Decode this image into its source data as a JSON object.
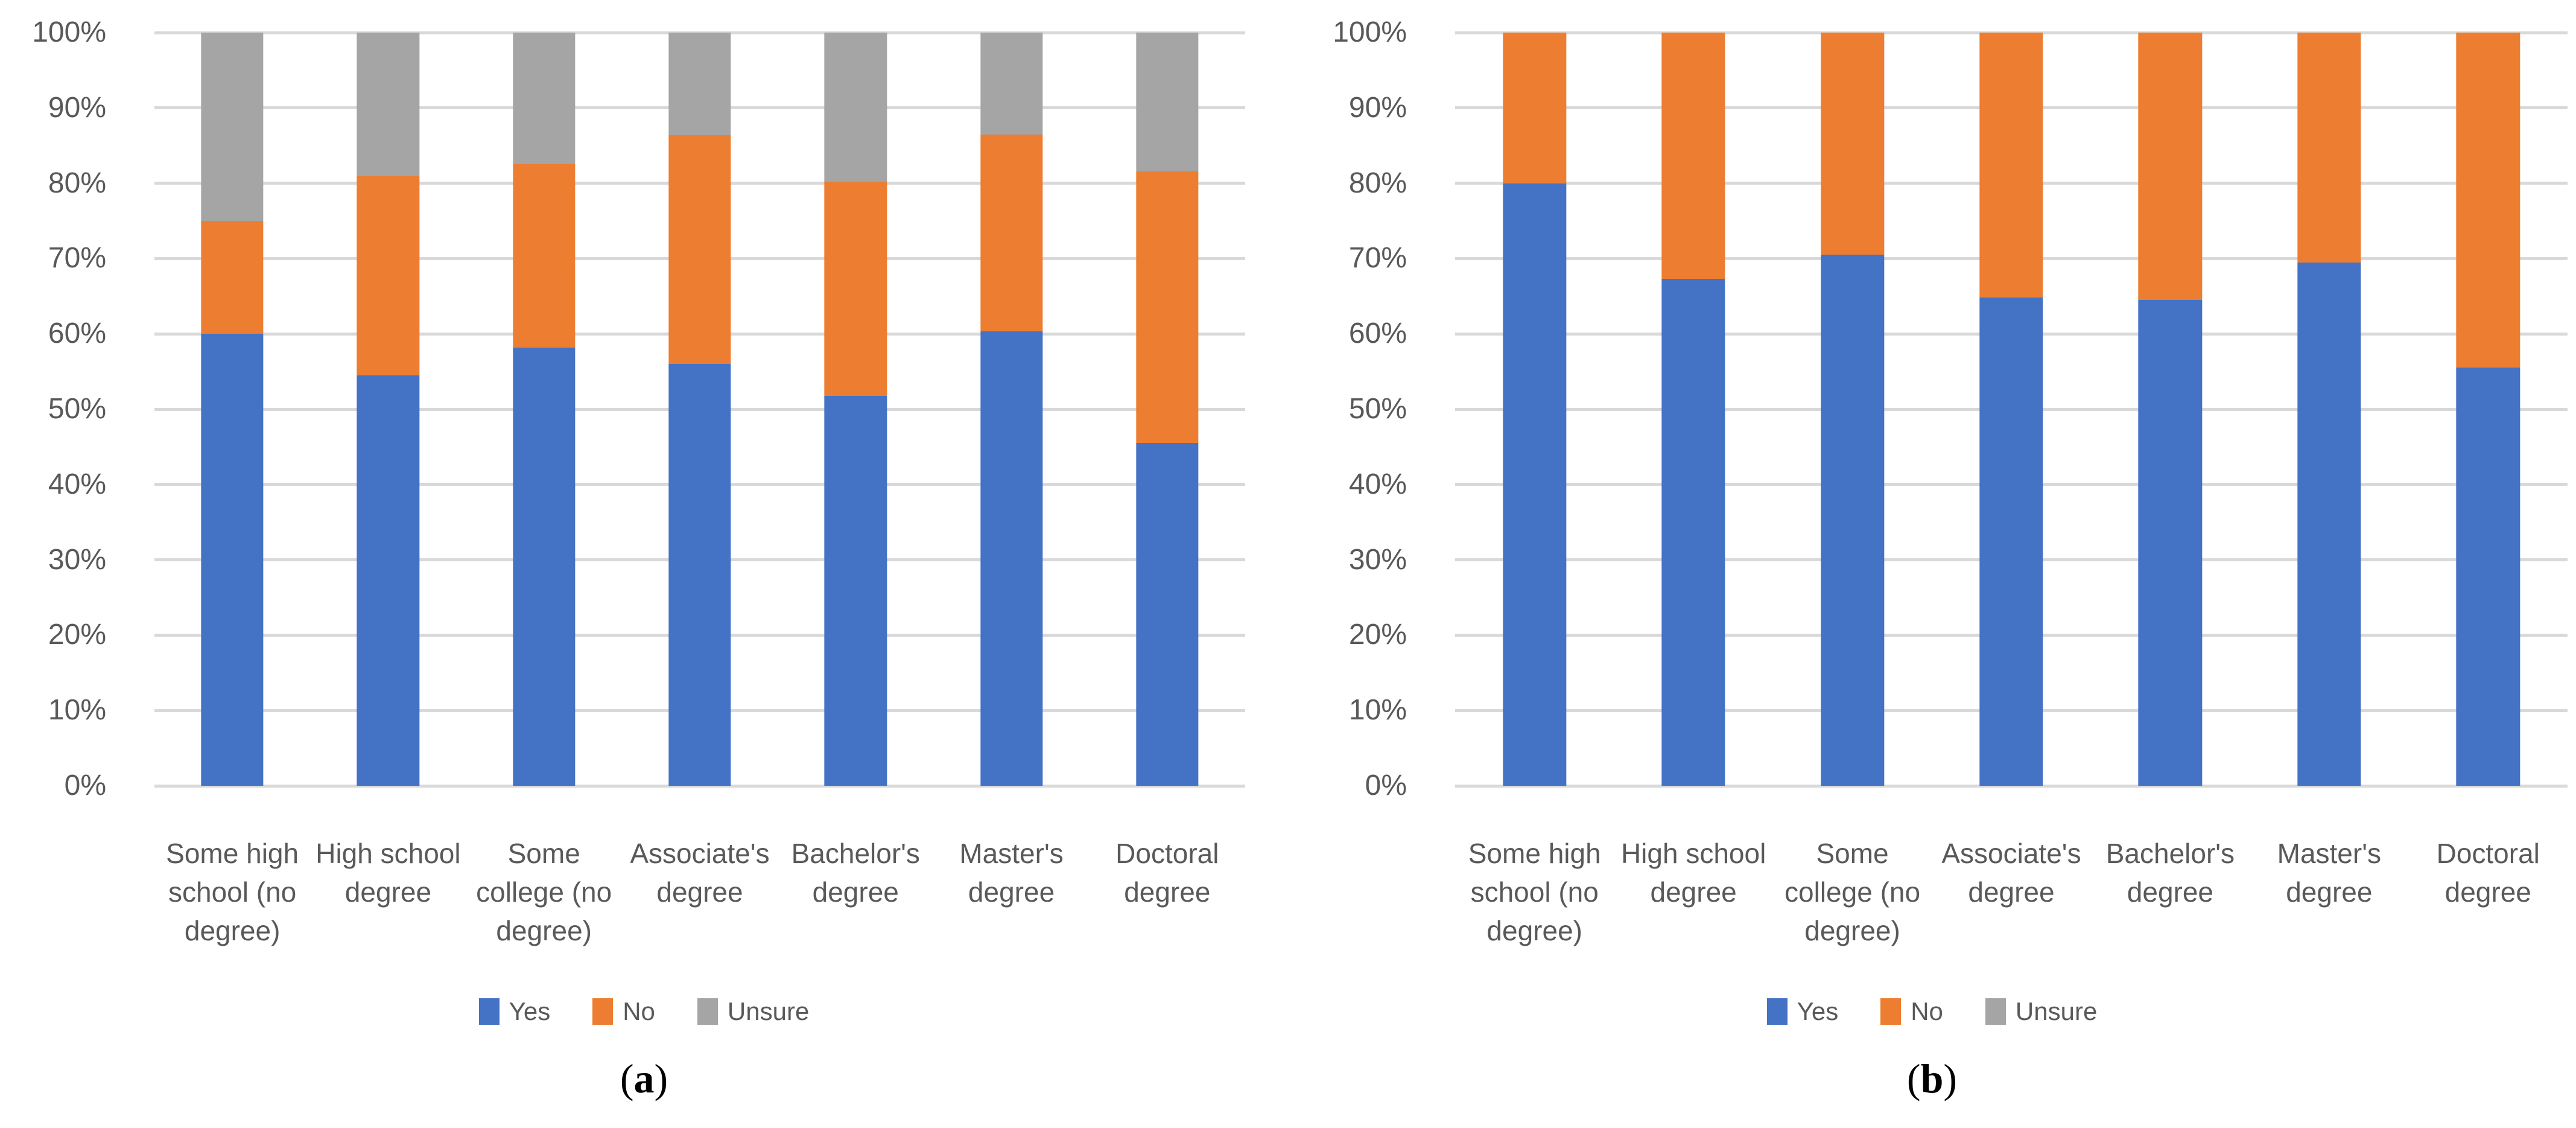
{
  "figure": {
    "background": "#ffffff",
    "text_color": "#595959",
    "gridline_color": "#d9d9d9",
    "caption_color": "#000000"
  },
  "axes": {
    "y_ticks": [
      "100%",
      "90%",
      "80%",
      "70%",
      "60%",
      "50%",
      "40%",
      "30%",
      "20%",
      "10%",
      "0%"
    ]
  },
  "categories": [
    "Some high school (no degree)",
    "High school degree",
    "Some college (no degree)",
    "Associate's degree",
    "Bachelor's degree",
    "Master's degree",
    "Doctoral degree"
  ],
  "legend": [
    "Yes",
    "No",
    "Unsure"
  ],
  "chart_data": [
    {
      "id": "a",
      "type": "bar",
      "stacked": true,
      "title": "",
      "xlabel": "",
      "ylabel": "",
      "ylim": [
        0,
        100
      ],
      "y_tick_step": 10,
      "grid": true,
      "legend_position": "bottom",
      "caption": {
        "open": "(",
        "letter": "a",
        "close": ")"
      },
      "categories": [
        "Some high school (no degree)",
        "High school degree",
        "Some college (no degree)",
        "Associate's degree",
        "Bachelor's degree",
        "Master's degree",
        "Doctoral degree"
      ],
      "series": [
        {
          "name": "Yes",
          "color": "#4472C4",
          "values": [
            60.0,
            54.5,
            58.2,
            56.0,
            51.8,
            60.3,
            45.5
          ]
        },
        {
          "name": "No",
          "color": "#ED7D31",
          "values": [
            15.0,
            26.4,
            24.3,
            30.4,
            28.4,
            26.2,
            36.1
          ]
        },
        {
          "name": "Unsure",
          "color": "#A5A5A5",
          "values": [
            25.0,
            19.1,
            17.5,
            13.6,
            19.8,
            13.5,
            18.4
          ]
        }
      ]
    },
    {
      "id": "b",
      "type": "bar",
      "stacked": true,
      "title": "",
      "xlabel": "",
      "ylabel": "",
      "ylim": [
        0,
        100
      ],
      "y_tick_step": 10,
      "grid": true,
      "legend_position": "bottom",
      "caption": {
        "open": "(",
        "letter": "b",
        "close": ")"
      },
      "categories": [
        "Some high school (no degree)",
        "High school degree",
        "Some college (no degree)",
        "Associate's degree",
        "Bachelor's degree",
        "Master's degree",
        "Doctoral degree"
      ],
      "series": [
        {
          "name": "Yes",
          "color": "#4472C4",
          "values": [
            80.0,
            67.3,
            70.5,
            64.8,
            64.5,
            69.5,
            55.5
          ]
        },
        {
          "name": "No",
          "color": "#ED7D31",
          "values": [
            20.0,
            32.7,
            29.5,
            35.2,
            35.5,
            30.5,
            44.5
          ]
        },
        {
          "name": "Unsure",
          "color": "#A5A5A5",
          "values": [
            0,
            0,
            0,
            0,
            0,
            0,
            0
          ]
        }
      ]
    }
  ]
}
